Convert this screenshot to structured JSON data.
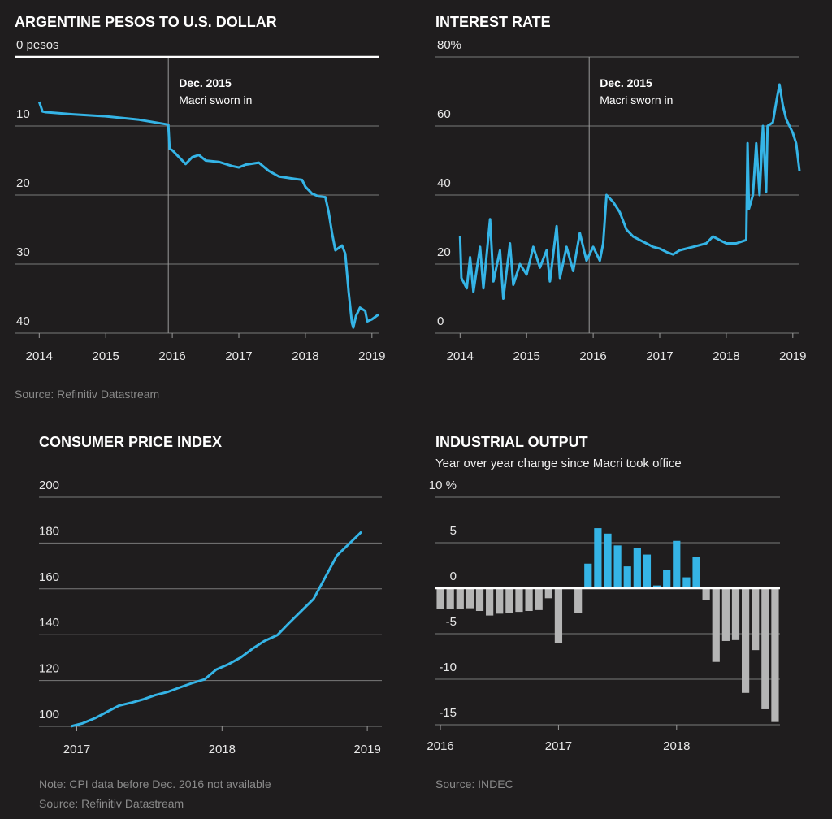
{
  "chart_data": [
    {
      "type": "line",
      "title": "ARGENTINE PESOS TO U.S. DOLLAR",
      "color": "#35b4e6",
      "invert_y": true,
      "zero_line": true,
      "annotation": {
        "x": 2015.94,
        "title": "Dec. 2015",
        "text": "Macri sworn in"
      },
      "x": [
        2014.0,
        2014.05,
        2014.1,
        2014.5,
        2015.0,
        2015.5,
        2015.94,
        2015.96,
        2016.0,
        2016.1,
        2016.2,
        2016.3,
        2016.4,
        2016.5,
        2016.7,
        2016.9,
        2017.0,
        2017.1,
        2017.3,
        2017.45,
        2017.6,
        2017.8,
        2017.95,
        2018.0,
        2018.1,
        2018.2,
        2018.3,
        2018.35,
        2018.4,
        2018.45,
        2018.55,
        2018.6,
        2018.65,
        2018.7,
        2018.72,
        2018.76,
        2018.82,
        2018.9,
        2018.93,
        2019.0,
        2019.1
      ],
      "values": [
        6.5,
        7.9,
        8.0,
        8.3,
        8.6,
        9.1,
        9.8,
        13.3,
        13.5,
        14.5,
        15.5,
        14.5,
        14.2,
        15.0,
        15.2,
        15.8,
        16.0,
        15.6,
        15.3,
        16.5,
        17.3,
        17.6,
        17.8,
        18.8,
        19.8,
        20.2,
        20.3,
        22.5,
        25.5,
        28.0,
        27.3,
        28.5,
        34.0,
        38.5,
        39.2,
        37.5,
        36.3,
        36.8,
        38.3,
        38.0,
        37.3
      ],
      "xlim": [
        2013.63,
        2019.1
      ],
      "xticks": [
        2014,
        2015,
        2016,
        2017,
        2018,
        2019
      ],
      "ylim": [
        0,
        40
      ],
      "yticks": [
        {
          "value": 0,
          "label": "0 pesos"
        },
        10,
        20,
        30,
        40
      ],
      "notes": [
        "Source: Refinitiv Datastream"
      ]
    },
    {
      "type": "line",
      "title": "INTEREST RATE",
      "color": "#35b4e6",
      "annotation": {
        "x": 2015.94,
        "title": "Dec. 2015",
        "text": "Macri sworn in"
      },
      "x": [
        2014.0,
        2014.02,
        2014.1,
        2014.15,
        2014.2,
        2014.3,
        2014.35,
        2014.45,
        2014.5,
        2014.6,
        2014.65,
        2014.75,
        2014.8,
        2014.9,
        2015.0,
        2015.1,
        2015.2,
        2015.3,
        2015.35,
        2015.45,
        2015.5,
        2015.6,
        2015.7,
        2015.8,
        2015.9,
        2016.0,
        2016.1,
        2016.15,
        2016.2,
        2016.3,
        2016.4,
        2016.5,
        2016.6,
        2016.7,
        2016.8,
        2016.9,
        2017.0,
        2017.1,
        2017.2,
        2017.3,
        2017.5,
        2017.7,
        2017.8,
        2017.9,
        2018.0,
        2018.15,
        2018.3,
        2018.32,
        2018.34,
        2018.4,
        2018.45,
        2018.5,
        2018.55,
        2018.6,
        2018.62,
        2018.7,
        2018.76,
        2018.8,
        2018.85,
        2018.9,
        2019.0,
        2019.05,
        2019.1
      ],
      "values": [
        28,
        16,
        13,
        22,
        12,
        25,
        13,
        33,
        15,
        24,
        10,
        26,
        14,
        20,
        17,
        25,
        19,
        24,
        15,
        31,
        16,
        25,
        18,
        29,
        21,
        25,
        21,
        26,
        40,
        38,
        35,
        30,
        28,
        27,
        26,
        25,
        24.5,
        23.5,
        22.8,
        24,
        25,
        26,
        28,
        27,
        26,
        26,
        27,
        55,
        36,
        40,
        55,
        40,
        60,
        41,
        60,
        61,
        68,
        72,
        66,
        62,
        58,
        55,
        47
      ],
      "xlim": [
        2013.63,
        2019.1
      ],
      "xticks": [
        2014,
        2015,
        2016,
        2017,
        2018,
        2019
      ],
      "ylim": [
        0,
        80
      ],
      "yticks": [
        0,
        20,
        40,
        60,
        {
          "value": 80,
          "label": "80%"
        }
      ]
    },
    {
      "type": "line",
      "title": "CONSUMER PRICE INDEX",
      "color": "#35b4e6",
      "x": [
        2016.96,
        2017.04,
        2017.13,
        2017.21,
        2017.29,
        2017.38,
        2017.46,
        2017.54,
        2017.63,
        2017.71,
        2017.79,
        2017.88,
        2017.96,
        2018.04,
        2018.13,
        2018.21,
        2018.29,
        2018.38,
        2018.46,
        2018.54,
        2018.63,
        2018.71,
        2018.79,
        2018.88,
        2018.96
      ],
      "values": [
        100,
        101.3,
        103.7,
        106.4,
        109,
        110.4,
        111.8,
        113.6,
        115.1,
        117,
        118.8,
        120.5,
        124.8,
        127,
        130.1,
        133.9,
        137.2,
        139.8,
        145,
        150,
        155.6,
        165,
        174.5,
        180,
        184.9
      ],
      "xlim": [
        2016.74,
        2019.1
      ],
      "xticks": [
        2017,
        2018,
        2019
      ],
      "ylim": [
        100,
        200
      ],
      "yticks": [
        100,
        120,
        140,
        160,
        180,
        200
      ],
      "notes": [
        "Note: CPI data before Dec. 2016 not available",
        "Source: Refinitiv Datastream"
      ]
    },
    {
      "type": "bar",
      "title": "INDUSTRIAL OUTPUT",
      "subtitle": "Year over year change since Macri took office",
      "color": "#35b4e6",
      "negative_color": "#b5b5b5",
      "zero_line": true,
      "categories": [
        "2016",
        null,
        null,
        null,
        null,
        null,
        null,
        null,
        null,
        null,
        null,
        null,
        "2017",
        null,
        null,
        null,
        null,
        null,
        null,
        null,
        null,
        null,
        null,
        null,
        "2018",
        null,
        null,
        null,
        null,
        null,
        null,
        null,
        null,
        null,
        null
      ],
      "values": [
        -2.3,
        -2.3,
        -2.3,
        -2.2,
        -2.5,
        -3.0,
        -2.8,
        -2.7,
        -2.6,
        -2.5,
        -2.4,
        -1.1,
        -6.0,
        0,
        -2.7,
        2.7,
        6.6,
        6.0,
        4.7,
        2.4,
        4.4,
        3.7,
        0.3,
        2.0,
        5.2,
        1.2,
        3.4,
        -1.3,
        -8.1,
        -5.8,
        -5.7,
        -11.5,
        -6.8,
        -13.3,
        -14.7
      ],
      "ylim": [
        -15,
        10
      ],
      "yticks": [
        {
          "value": 10,
          "label": "10 %"
        },
        5,
        0,
        -5,
        -10,
        -15
      ],
      "notes": [
        "Source: INDEC"
      ]
    }
  ]
}
